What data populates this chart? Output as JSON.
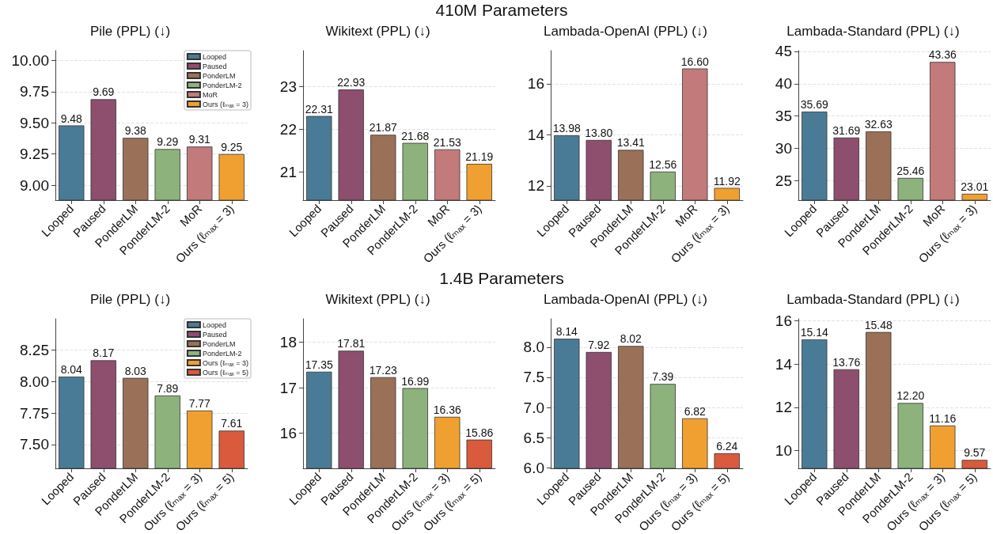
{
  "chart_data": [
    {
      "type": "bar",
      "title": "Pile (PPL) (↓)",
      "categories": [
        "Looped",
        "Paused",
        "PonderLM",
        "PonderLM-2",
        "MoR",
        "Ours (ℓₘₐₓ = 3)"
      ],
      "stacked": true,
      "series": [
        {
          "name": "Looped",
          "color": "#4a7b96",
          "values": [
            9.48,
            null,
            null,
            null,
            null,
            null
          ]
        },
        {
          "name": "Paused",
          "color": "#8e4e6e",
          "values": [
            null,
            9.69,
            null,
            null,
            null,
            null
          ]
        },
        {
          "name": "PonderLM",
          "color": "#9a7058",
          "values": [
            null,
            null,
            9.38,
            null,
            null,
            null
          ]
        },
        {
          "name": "PonderLM-2",
          "color": "#8db27c",
          "values": [
            null,
            null,
            null,
            9.29,
            null,
            null
          ]
        },
        {
          "name": "MoR",
          "color": "#c27a7a",
          "values": [
            null,
            null,
            null,
            null,
            9.31,
            null
          ]
        },
        {
          "name": "Ours (ℓₘₐₓ = 3)",
          "color": "#f0a030",
          "values": [
            null,
            null,
            null,
            null,
            null,
            9.25
          ]
        }
      ],
      "ylim": [
        8.88,
        10.08
      ],
      "yticks": [
        {
          "value": 9,
          "label": "9.00"
        },
        9.25,
        {
          "value": 9.5,
          "label": "9.50"
        },
        9.75,
        {
          "value": 10,
          "label": "10.00"
        }
      ],
      "grid": "y",
      "legend": "top right",
      "data_labels": true
    },
    {
      "type": "bar",
      "title": "Wikitext (PPL) (↓)",
      "categories": [
        "Looped",
        "Paused",
        "PonderLM",
        "PonderLM-2",
        "MoR",
        "Ours (ℓₘₐₓ = 3)"
      ],
      "values": [
        22.31,
        22.93,
        21.87,
        21.68,
        21.53,
        21.19
      ],
      "colors": [
        "#4a7b96",
        "#8e4e6e",
        "#9a7058",
        "#8db27c",
        "#c27a7a",
        "#f0a030"
      ],
      "ylim": [
        20.34,
        23.84
      ],
      "yticks": [
        21,
        22,
        23
      ],
      "grid": "y",
      "data_labels": true
    },
    {
      "type": "bar",
      "title": "Lambada-OpenAI (PPL) (↓)",
      "annotations": [
        "410M Parameters"
      ],
      "categories": [
        "Looped",
        "Paused",
        "PonderLM",
        "PonderLM-2",
        "MoR",
        "Ours (ℓₘₐₓ = 3)"
      ],
      "values": [
        13.98,
        13.8,
        13.41,
        12.56,
        16.6,
        11.92
      ],
      "value_labels": [
        "13.98",
        "13.80",
        "13.41",
        "12.56",
        "16.60",
        "11.92"
      ],
      "colors": [
        "#4a7b96",
        "#8e4e6e",
        "#9a7058",
        "#8db27c",
        "#c27a7a",
        "#f0a030"
      ],
      "ylim": [
        11.44,
        17.3
      ],
      "yticks": [
        12,
        14,
        16
      ],
      "grid": "y"
    },
    {
      "type": "bar",
      "title": "Lambada-Standard (PPL) (↓)",
      "categories": [
        "Looped",
        "Paused",
        "PonderLM",
        "PonderLM-2",
        "MoR",
        "Ours (ℓₘₐₓ = 3)"
      ],
      "values": [
        35.69,
        31.69,
        32.63,
        25.46,
        43.36,
        23.01
      ],
      "colors": [
        "#4a7b96",
        "#8e4e6e",
        "#9a7058",
        "#8db27c",
        "#c27a7a",
        "#f0a030"
      ],
      "ylim": [
        22.03,
        45.1
      ],
      "yticks": [
        25,
        30,
        35,
        40,
        45
      ],
      "grid": "y",
      "data_labels": true
    },
    {
      "type": "bar",
      "title": "Pile (PPL) (↓)",
      "categories": [
        "Looped",
        "Paused",
        "PonderLM",
        "PonderLM-2",
        "Ours (ℓₘₐₓ = 3)",
        "Ours (ℓₘₐₓ = 5)"
      ],
      "stacked": true,
      "series": [
        {
          "name": "Looped",
          "color": "#4a7b96",
          "values": [
            8.04,
            null,
            null,
            null,
            null,
            null
          ]
        },
        {
          "name": "Paused",
          "color": "#8e4e6e",
          "values": [
            null,
            8.17,
            null,
            null,
            null,
            null
          ]
        },
        {
          "name": "PonderLM",
          "color": "#9a7058",
          "values": [
            null,
            null,
            8.03,
            null,
            null,
            null
          ]
        },
        {
          "name": "PonderLM-2",
          "color": "#8db27c",
          "values": [
            null,
            null,
            null,
            7.89,
            null,
            null
          ]
        },
        {
          "name": "Ours (ℓₘₐₓ = 3)",
          "color": "#f0a030",
          "values": [
            null,
            null,
            null,
            null,
            7.77,
            null
          ]
        },
        {
          "name": "Ours (ℓₘₐₓ = 5)",
          "color": "#d95a3c",
          "values": [
            null,
            null,
            null,
            null,
            null,
            7.61
          ]
        }
      ],
      "ylim": [
        7.31,
        8.5
      ],
      "yticks": [
        {
          "value": 7.5,
          "label": "7.50"
        },
        7.75,
        {
          "value": 8,
          "label": "8.00"
        },
        8.25
      ],
      "grid": "y",
      "legend": "top right",
      "data_labels": true
    },
    {
      "type": "bar",
      "title": "Wikitext (PPL) (↓)",
      "categories": [
        "Looped",
        "Paused",
        "PonderLM",
        "PonderLM-2",
        "Ours (ℓₘₐₓ = 3)",
        "Ours (ℓₘₐₓ = 5)"
      ],
      "values": [
        17.35,
        17.81,
        17.23,
        16.99,
        16.36,
        15.86
      ],
      "colors": [
        "#4a7b96",
        "#8e4e6e",
        "#9a7058",
        "#8db27c",
        "#f0a030",
        "#d95a3c"
      ],
      "ylim": [
        15.23,
        18.51
      ],
      "yticks": [
        16,
        17,
        18
      ],
      "grid": "y",
      "data_labels": true
    },
    {
      "type": "bar",
      "title": "Lambada-OpenAI (PPL) (↓)",
      "annotations": [
        "1.4B Parameters"
      ],
      "categories": [
        "Looped",
        "Paused",
        "PonderLM",
        "PonderLM-2",
        "Ours (ℓₘₐₓ = 3)",
        "Ours (ℓₘₐₓ = 5)"
      ],
      "values": [
        8.14,
        7.92,
        8.02,
        7.39,
        6.82,
        6.24
      ],
      "colors": [
        "#4a7b96",
        "#8e4e6e",
        "#9a7058",
        "#8db27c",
        "#f0a030",
        "#d95a3c"
      ],
      "ylim": [
        5.99,
        8.47
      ],
      "yticks": [
        {
          "value": 6,
          "label": "6.0"
        },
        6.5,
        {
          "value": 7,
          "label": "7.0"
        },
        7.5,
        {
          "value": 8,
          "label": "8.0"
        }
      ],
      "grid": "y",
      "data_labels": true
    },
    {
      "type": "bar",
      "title": "Lambada-Standard (PPL) (↓)",
      "categories": [
        "Looped",
        "Paused",
        "PonderLM",
        "PonderLM-2",
        "Ours (ℓₘₐₓ = 3)",
        "Ours (ℓₘₐₓ = 5)"
      ],
      "values": [
        15.14,
        13.76,
        15.48,
        12.2,
        11.16,
        9.57
      ],
      "value_labels": [
        "15.14",
        "13.76",
        "15.48",
        "12.20",
        "11.16",
        "9.57"
      ],
      "colors": [
        "#4a7b96",
        "#8e4e6e",
        "#9a7058",
        "#8db27c",
        "#f0a030",
        "#d95a3c"
      ],
      "ylim": [
        9.18,
        16.09
      ],
      "yticks": [
        10,
        12,
        14,
        16
      ],
      "grid": "y"
    }
  ]
}
